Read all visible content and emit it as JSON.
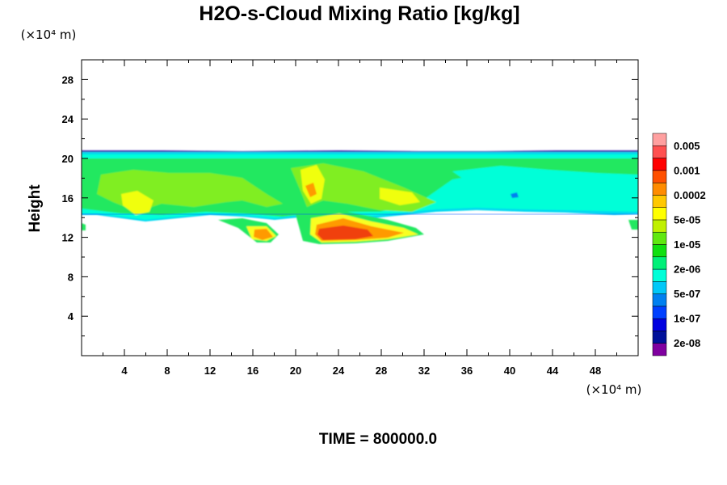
{
  "chart_data": {
    "type": "heatmap",
    "title": "H2O-s-Cloud Mixing Ratio [kg/kg]",
    "xlabel": "",
    "ylabel": "Height",
    "x_unit": "(×10⁴ m)",
    "y_unit": "(×10⁴ m)",
    "xlim": [
      0,
      52
    ],
    "ylim": [
      0,
      30
    ],
    "x_ticks": [
      4,
      8,
      12,
      16,
      20,
      24,
      28,
      32,
      36,
      40,
      44,
      48
    ],
    "y_ticks": [
      4,
      8,
      12,
      16,
      20,
      24,
      28
    ],
    "colorbar": {
      "colors": [
        "#8000a0",
        "#00109a",
        "#0000e0",
        "#0040ff",
        "#0080f0",
        "#00c8f8",
        "#00ffd8",
        "#00f078",
        "#10e010",
        "#60e810",
        "#c0f000",
        "#ffff00",
        "#ffc800",
        "#ff8c00",
        "#ff5000",
        "#ff0000",
        "#ff5050",
        "#ffa0a0"
      ],
      "labels": [
        "2e-08",
        "1e-07",
        "5e-07",
        "2e-06",
        "1e-05",
        "5e-05",
        "0.0002",
        "0.001",
        "0.005"
      ]
    },
    "regions": [
      {
        "level": "2e-08",
        "extent_x": [
          0,
          52
        ],
        "extent_y": [
          14.2,
          20.6
        ],
        "note": "thin purple/blue cloud top edge near 20.5"
      },
      {
        "level": "2e-06",
        "extent_x": [
          0,
          52
        ],
        "extent_y": [
          14.2,
          20.3
        ]
      },
      {
        "level": "1e-05",
        "extent_x": [
          0,
          52
        ],
        "extent_y": [
          14.5,
          20.0
        ]
      },
      {
        "level": "0.0002",
        "extent_x": [
          4,
          31
        ],
        "extent_y": [
          11.5,
          19.0
        ]
      },
      {
        "level": "0.001",
        "extent_x": [
          16,
          27.5
        ],
        "extent_y": [
          11.8,
          13.0
        ]
      }
    ],
    "time_label": "TIME = 800000.0"
  }
}
